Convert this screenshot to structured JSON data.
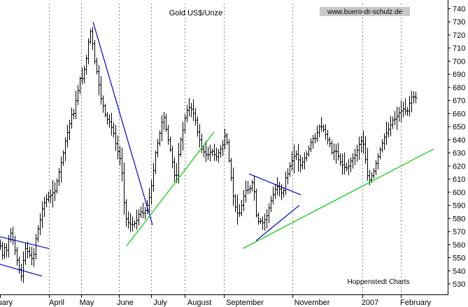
{
  "chart_data": {
    "type": "bar",
    "subtype": "ohlc",
    "title": "Gold US$/Unze",
    "watermark": "www.buero-dr-schulz.de",
    "source": "Hoppenstedt Charts",
    "y_axis": {
      "position": "right",
      "ylim": [
        522,
        744
      ],
      "ticks": [
        530,
        540,
        550,
        560,
        570,
        580,
        590,
        600,
        610,
        620,
        630,
        640,
        650,
        660,
        670,
        680,
        690,
        700,
        710,
        720,
        730,
        740
      ]
    },
    "x_axis": {
      "tick_labels": [
        "uary",
        "April",
        "May",
        "June",
        "July",
        "August",
        "September",
        "November",
        "2007",
        "February"
      ],
      "gridlines": "dotted vertical at month boundaries"
    },
    "grid": true,
    "colors": {
      "bars": "#000000",
      "resistance": "#0000cc",
      "support": "#00cc00",
      "axis": "#000000"
    },
    "price_series": {
      "name": "",
      "anchors": [
        [
          0,
          559
        ],
        [
          3,
          552
        ],
        [
          5,
          560
        ],
        [
          8,
          553
        ],
        [
          11,
          561
        ],
        [
          14,
          570
        ],
        [
          17,
          566
        ],
        [
          20,
          558
        ],
        [
          24,
          548
        ],
        [
          27,
          541
        ],
        [
          30,
          536
        ],
        [
          33,
          548
        ],
        [
          36,
          557
        ],
        [
          40,
          554
        ],
        [
          44,
          550
        ],
        [
          47,
          548
        ],
        [
          50,
          562
        ],
        [
          54,
          572
        ],
        [
          57,
          579
        ],
        [
          61,
          590
        ],
        [
          64,
          593
        ],
        [
          68,
          596
        ],
        [
          71,
          597
        ],
        [
          74,
          599
        ],
        [
          78,
          601
        ],
        [
          82,
          611
        ],
        [
          86,
          620
        ],
        [
          90,
          630
        ],
        [
          94,
          642
        ],
        [
          98,
          649
        ],
        [
          101,
          659
        ],
        [
          105,
          660
        ],
        [
          108,
          670
        ],
        [
          112,
          680
        ],
        [
          115,
          690
        ],
        [
          118,
          685
        ],
        [
          121,
          698
        ],
        [
          124,
          704
        ],
        [
          127,
          720
        ],
        [
          130,
          724
        ],
        [
          133,
          708
        ],
        [
          136,
          696
        ],
        [
          139,
          690
        ],
        [
          142,
          678
        ],
        [
          145,
          668
        ],
        [
          148,
          665
        ],
        [
          151,
          656
        ],
        [
          155,
          655
        ],
        [
          158,
          651
        ],
        [
          162,
          645
        ],
        [
          165,
          637
        ],
        [
          168,
          631
        ],
        [
          172,
          624
        ],
        [
          175,
          610
        ],
        [
          178,
          583
        ],
        [
          181,
          578
        ],
        [
          184,
          576
        ],
        [
          188,
          575
        ],
        [
          191,
          576
        ],
        [
          194,
          577
        ],
        [
          198,
          583
        ],
        [
          201,
          585
        ],
        [
          204,
          584
        ],
        [
          207,
          586
        ],
        [
          210,
          590
        ],
        [
          214,
          598
        ],
        [
          218,
          612
        ],
        [
          222,
          630
        ],
        [
          226,
          640
        ],
        [
          230,
          650
        ],
        [
          233,
          660
        ],
        [
          237,
          648
        ],
        [
          240,
          640
        ],
        [
          244,
          630
        ],
        [
          248,
          616
        ],
        [
          251,
          607
        ],
        [
          254,
          625
        ],
        [
          258,
          640
        ],
        [
          262,
          650
        ],
        [
          265,
          660
        ],
        [
          269,
          665
        ],
        [
          272,
          664
        ],
        [
          275,
          662
        ],
        [
          279,
          655
        ],
        [
          282,
          646
        ],
        [
          285,
          640
        ],
        [
          288,
          633
        ],
        [
          292,
          630
        ],
        [
          295,
          628
        ],
        [
          298,
          629
        ],
        [
          302,
          632
        ],
        [
          305,
          630
        ],
        [
          308,
          626
        ],
        [
          311,
          629
        ],
        [
          315,
          633
        ],
        [
          318,
          636
        ],
        [
          321,
          643
        ],
        [
          324,
          638
        ],
        [
          327,
          624
        ],
        [
          330,
          611
        ],
        [
          333,
          597
        ],
        [
          337,
          586
        ],
        [
          341,
          582
        ],
        [
          345,
          590
        ],
        [
          348,
          597
        ],
        [
          352,
          603
        ],
        [
          356,
          601
        ],
        [
          359,
          607
        ],
        [
          362,
          608
        ],
        [
          365,
          585
        ],
        [
          368,
          577
        ],
        [
          371,
          579
        ],
        [
          374,
          576
        ],
        [
          377,
          578
        ],
        [
          381,
          582
        ],
        [
          385,
          590
        ],
        [
          389,
          597
        ],
        [
          393,
          602
        ],
        [
          397,
          605
        ],
        [
          401,
          600
        ],
        [
          404,
          598
        ],
        [
          408,
          611
        ],
        [
          411,
          614
        ],
        [
          415,
          622
        ],
        [
          418,
          625
        ],
        [
          422,
          630
        ],
        [
          425,
          627
        ],
        [
          428,
          620
        ],
        [
          431,
          622
        ],
        [
          434,
          625
        ],
        [
          437,
          628
        ],
        [
          440,
          631
        ],
        [
          443,
          637
        ],
        [
          447,
          641
        ],
        [
          451,
          641
        ],
        [
          455,
          650
        ],
        [
          459,
          650
        ],
        [
          463,
          647
        ],
        [
          467,
          641
        ],
        [
          471,
          637
        ],
        [
          475,
          628
        ],
        [
          478,
          633
        ],
        [
          482,
          629
        ],
        [
          486,
          623
        ],
        [
          490,
          620
        ],
        [
          494,
          618
        ],
        [
          498,
          620
        ],
        [
          502,
          625
        ],
        [
          506,
          627
        ],
        [
          510,
          632
        ],
        [
          514,
          638
        ],
        [
          518,
          640
        ],
        [
          521,
          630
        ],
        [
          524,
          615
        ],
        [
          527,
          608
        ],
        [
          530,
          612
        ],
        [
          533,
          614
        ],
        [
          537,
          622
        ],
        [
          541,
          629
        ],
        [
          545,
          636
        ],
        [
          549,
          642
        ],
        [
          553,
          646
        ],
        [
          557,
          650
        ],
        [
          561,
          655
        ],
        [
          565,
          656
        ],
        [
          569,
          660
        ],
        [
          573,
          662
        ],
        [
          577,
          664
        ],
        [
          581,
          660
        ],
        [
          585,
          668
        ],
        [
          589,
          674
        ],
        [
          592,
          672
        ],
        [
          595,
          672
        ]
      ]
    },
    "trendlines": [
      {
        "color": "blue",
        "x": [
          0,
          70
        ],
        "y": [
          566,
          557
        ]
      },
      {
        "color": "blue",
        "x": [
          0,
          60
        ],
        "y": [
          545,
          536
        ]
      },
      {
        "color": "blue",
        "x": [
          133,
          218
        ],
        "y": [
          730,
          575
        ]
      },
      {
        "color": "green",
        "x": [
          181,
          306
        ],
        "y": [
          559,
          646
        ]
      },
      {
        "color": "blue",
        "x": [
          356,
          430
        ],
        "y": [
          614,
          598
        ]
      },
      {
        "color": "blue",
        "x": [
          366,
          428
        ],
        "y": [
          563,
          590
        ]
      },
      {
        "color": "green",
        "x": [
          347,
          620
        ],
        "y": [
          557,
          633
        ]
      }
    ]
  }
}
